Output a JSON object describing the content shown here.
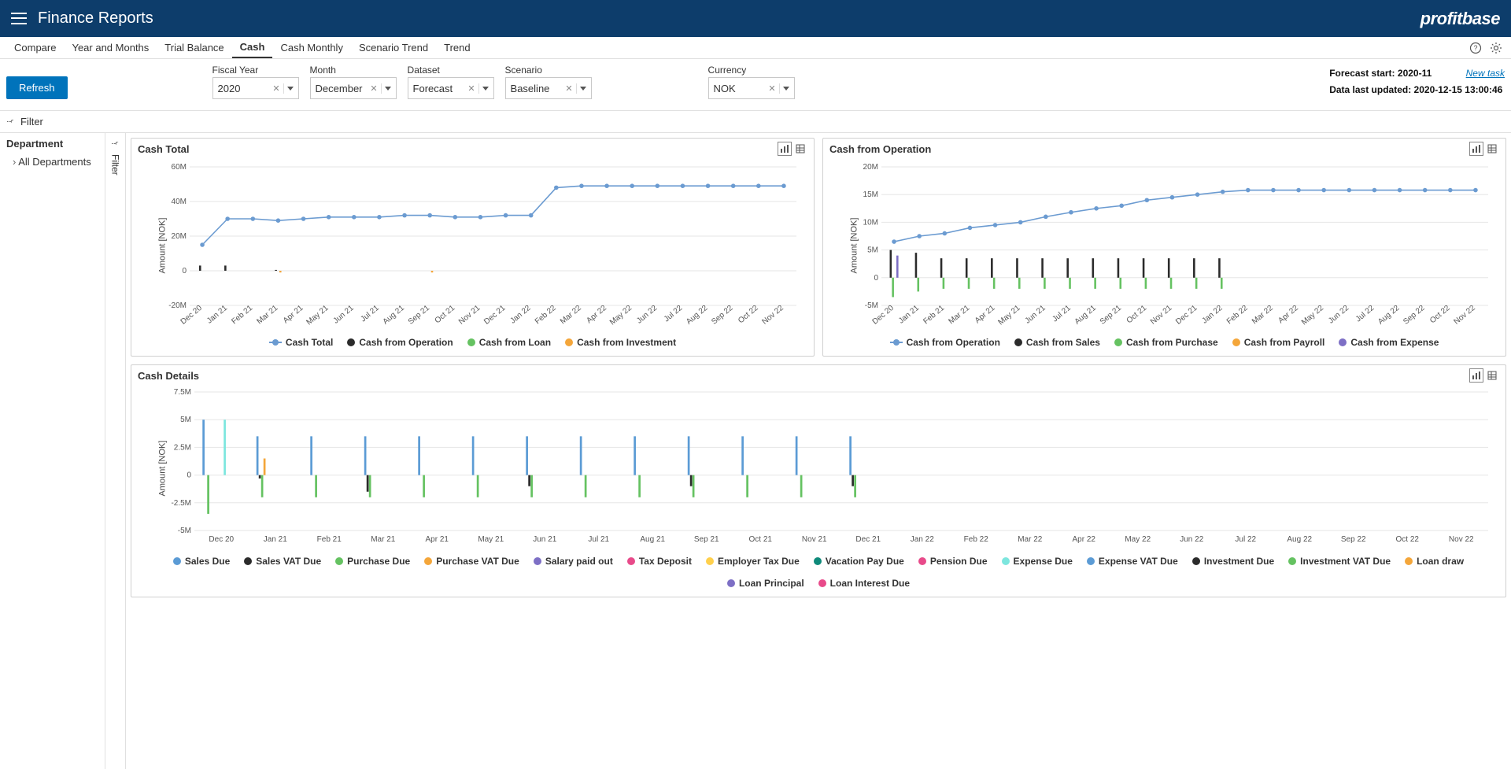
{
  "app": {
    "title": "Finance Reports",
    "brand": "profitbase"
  },
  "tabs": {
    "items": [
      "Compare",
      "Year and Months",
      "Trial Balance",
      "Cash",
      "Cash Monthly",
      "Scenario Trend",
      "Trend"
    ],
    "active_index": 3
  },
  "toolbar": {
    "refresh_label": "Refresh",
    "filters": [
      {
        "label": "Fiscal Year",
        "value": "2020"
      },
      {
        "label": "Month",
        "value": "December"
      },
      {
        "label": "Dataset",
        "value": "Forecast"
      },
      {
        "label": "Scenario",
        "value": "Baseline"
      },
      {
        "label": "Currency",
        "value": "NOK"
      }
    ],
    "meta": {
      "forecast_label": "Forecast start:",
      "forecast_value": "2020-11",
      "updated_label": "Data last updated:",
      "updated_value": "2020-12-15 13:00:46",
      "new_task": "New task"
    }
  },
  "filterstrip_label": "Filter",
  "sidebar": {
    "heading": "Department",
    "root_item": "All Departments"
  },
  "colors": {
    "primary_line": "#6b9bd1",
    "black": "#2b2b2b",
    "green": "#65c261",
    "orange": "#f4a63a",
    "blue": "#5b9bd5",
    "purple": "#7d6fc5",
    "magenta": "#e84a8a",
    "gold": "#ffd04c",
    "teal": "#0e8a7a",
    "cyan": "#7de6de",
    "grid": "#e6e6e6",
    "axis": "#888888"
  },
  "x_axis": {
    "categories": [
      "Dec 20",
      "Jan 21",
      "Feb 21",
      "Mar 21",
      "Apr 21",
      "May 21",
      "Jun 21",
      "Jul 21",
      "Aug 21",
      "Sep 21",
      "Oct 21",
      "Nov 21",
      "Dec 21",
      "Jan 22",
      "Feb 22",
      "Mar 22",
      "Apr 22",
      "May 22",
      "Jun 22",
      "Jul 22",
      "Aug 22",
      "Sep 22",
      "Oct 22",
      "Nov 22"
    ],
    "rotated": true
  },
  "ylabel_text": "Amount [NOK]",
  "chart_total": {
    "title": "Cash Total",
    "type": "combo-line-bar",
    "ylim": [
      -20,
      60
    ],
    "yticks": [
      -20,
      0,
      20,
      40,
      60
    ],
    "ytick_labels": [
      "-20M",
      "0",
      "20M",
      "40M",
      "60M"
    ],
    "line": {
      "name": "Cash Total",
      "color": "#6b9bd1",
      "values": [
        15,
        30,
        30,
        29,
        30,
        31,
        31,
        31,
        32,
        32,
        31,
        31,
        32,
        32,
        48,
        49,
        49,
        49,
        49,
        49,
        49,
        49,
        49,
        49
      ]
    },
    "bars": [
      {
        "name": "Cash from Operation",
        "color": "#2b2b2b",
        "values": [
          3,
          3,
          0,
          0.5,
          0,
          0,
          0,
          0,
          0,
          0,
          0,
          0,
          0,
          0,
          0,
          0,
          0,
          0,
          0,
          0,
          0,
          0,
          0,
          0
        ]
      },
      {
        "name": "Cash from Loan",
        "color": "#65c261",
        "values": [
          0,
          0,
          0,
          0,
          0,
          0,
          0,
          0,
          0,
          0,
          0,
          0,
          0,
          0,
          0,
          0,
          0,
          0,
          0,
          0,
          0,
          0,
          0,
          0
        ]
      },
      {
        "name": "Cash from Investment",
        "color": "#f4a63a",
        "values": [
          0,
          0,
          0,
          -1,
          0,
          0,
          0,
          0,
          0,
          -1,
          0,
          0,
          0,
          0,
          0,
          0,
          0,
          0,
          0,
          0,
          0,
          0,
          0,
          0
        ]
      }
    ],
    "legend": [
      {
        "label": "Cash Total",
        "color": "#6b9bd1",
        "shape": "line"
      },
      {
        "label": "Cash from Operation",
        "color": "#2b2b2b",
        "shape": "dot"
      },
      {
        "label": "Cash from Loan",
        "color": "#65c261",
        "shape": "dot"
      },
      {
        "label": "Cash from Investment",
        "color": "#f4a63a",
        "shape": "dot"
      }
    ]
  },
  "chart_operation": {
    "title": "Cash from Operation",
    "type": "combo-line-bar",
    "ylim": [
      -5,
      20
    ],
    "yticks": [
      -5,
      0,
      5,
      10,
      15,
      20
    ],
    "ytick_labels": [
      "-5M",
      "0",
      "5M",
      "10M",
      "15M",
      "20M"
    ],
    "line": {
      "name": "Cash from Operation",
      "color": "#6b9bd1",
      "values": [
        6.5,
        7.5,
        8,
        9,
        9.5,
        10,
        11,
        11.8,
        12.5,
        13,
        14,
        14.5,
        15,
        15.5,
        15.8,
        15.8,
        15.8,
        15.8,
        15.8,
        15.8,
        15.8,
        15.8,
        15.8,
        15.8
      ]
    },
    "bars": [
      {
        "name": "Cash from Sales",
        "color": "#2b2b2b",
        "values": [
          5,
          4.5,
          3.5,
          3.5,
          3.5,
          3.5,
          3.5,
          3.5,
          3.5,
          3.5,
          3.5,
          3.5,
          3.5,
          3.5,
          0,
          0,
          0,
          0,
          0,
          0,
          0,
          0,
          0,
          0
        ]
      },
      {
        "name": "Cash from Purchase",
        "color": "#65c261",
        "values": [
          -3.5,
          -2.5,
          -2,
          -2,
          -2,
          -2,
          -2,
          -2,
          -2,
          -2,
          -2,
          -2,
          -2,
          -2,
          0,
          0,
          0,
          0,
          0,
          0,
          0,
          0,
          0,
          0
        ]
      },
      {
        "name": "Cash from Payroll",
        "color": "#f4a63a",
        "values": [
          0,
          0,
          0,
          0,
          0,
          0,
          0,
          0,
          0,
          0,
          0,
          0,
          0,
          0,
          0,
          0,
          0,
          0,
          0,
          0,
          0,
          0,
          0,
          0
        ]
      },
      {
        "name": "Cash from Expense",
        "color": "#7d6fc5",
        "values": [
          4,
          0,
          0,
          0,
          0,
          0,
          0,
          0,
          0,
          0,
          0,
          0,
          0,
          0,
          0,
          0,
          0,
          0,
          0,
          0,
          0,
          0,
          0,
          0
        ]
      }
    ],
    "legend": [
      {
        "label": "Cash from Operation",
        "color": "#6b9bd1",
        "shape": "line"
      },
      {
        "label": "Cash from Sales",
        "color": "#2b2b2b",
        "shape": "dot"
      },
      {
        "label": "Cash from Purchase",
        "color": "#65c261",
        "shape": "dot"
      },
      {
        "label": "Cash from Payroll",
        "color": "#f4a63a",
        "shape": "dot"
      },
      {
        "label": "Cash from Expense",
        "color": "#7d6fc5",
        "shape": "dot"
      }
    ]
  },
  "chart_details": {
    "title": "Cash Details",
    "type": "grouped-bar",
    "ylim": [
      -5,
      7.5
    ],
    "yticks": [
      -5,
      -2.5,
      0,
      2.5,
      5,
      7.5
    ],
    "ytick_labels": [
      "-5M",
      "-2.5M",
      "0",
      "2.5M",
      "5M",
      "7.5M"
    ],
    "bars": [
      {
        "name": "Sales Due",
        "color": "#5b9bd5",
        "values": [
          5,
          3.5,
          3.5,
          3.5,
          3.5,
          3.5,
          3.5,
          3.5,
          3.5,
          3.5,
          3.5,
          3.5,
          3.5,
          0,
          0,
          0,
          0,
          0,
          0,
          0,
          0,
          0,
          0,
          0
        ]
      },
      {
        "name": "Sales VAT Due",
        "color": "#2b2b2b",
        "values": [
          0,
          -0.3,
          0,
          -1.5,
          0,
          0,
          -1,
          0,
          0,
          -1,
          0,
          0,
          -1,
          0,
          0,
          0,
          0,
          0,
          0,
          0,
          0,
          0,
          0,
          0
        ]
      },
      {
        "name": "Purchase Due",
        "color": "#65c261",
        "values": [
          -3.5,
          -2,
          -2,
          -2,
          -2,
          -2,
          -2,
          -2,
          -2,
          -2,
          -2,
          -2,
          -2,
          0,
          0,
          0,
          0,
          0,
          0,
          0,
          0,
          0,
          0,
          0
        ]
      },
      {
        "name": "Purchase VAT Due",
        "color": "#f4a63a",
        "values": [
          0,
          1.5,
          0,
          0,
          0,
          0,
          0,
          0,
          0,
          0,
          0,
          0,
          0,
          0,
          0,
          0,
          0,
          0,
          0,
          0,
          0,
          0,
          0,
          0
        ]
      },
      {
        "name": "Salary paid out",
        "color": "#7d6fc5",
        "values": [
          0,
          0,
          0,
          0,
          0,
          0,
          0,
          0,
          0,
          0,
          0,
          0,
          0,
          0,
          0,
          0,
          0,
          0,
          0,
          0,
          0,
          0,
          0,
          0
        ]
      },
      {
        "name": "Tax Deposit",
        "color": "#e84a8a",
        "values": [
          0,
          0,
          0,
          0,
          0,
          0,
          0,
          0,
          0,
          0,
          0,
          0,
          0,
          0,
          0,
          0,
          0,
          0,
          0,
          0,
          0,
          0,
          0,
          0
        ]
      },
      {
        "name": "Employer Tax Due",
        "color": "#ffd04c",
        "values": [
          0,
          0,
          0,
          0,
          0,
          0,
          0,
          0,
          0,
          0,
          0,
          0,
          0,
          0,
          0,
          0,
          0,
          0,
          0,
          0,
          0,
          0,
          0,
          0
        ]
      },
      {
        "name": "Vacation Pay Due",
        "color": "#0e8a7a",
        "values": [
          0,
          0,
          0,
          0,
          0,
          0,
          0,
          0,
          0,
          0,
          0,
          0,
          0,
          0,
          0,
          0,
          0,
          0,
          0,
          0,
          0,
          0,
          0,
          0
        ]
      },
      {
        "name": "Pension Due",
        "color": "#e84a8a",
        "values": [
          0,
          0,
          0,
          0,
          0,
          0,
          0,
          0,
          0,
          0,
          0,
          0,
          0,
          0,
          0,
          0,
          0,
          0,
          0,
          0,
          0,
          0,
          0,
          0
        ]
      },
      {
        "name": "Expense Due",
        "color": "#7de6de",
        "values": [
          5,
          0,
          0,
          0,
          0,
          0,
          0,
          0,
          0,
          0,
          0,
          0,
          0,
          0,
          0,
          0,
          0,
          0,
          0,
          0,
          0,
          0,
          0,
          0
        ]
      },
      {
        "name": "Expense VAT Due",
        "color": "#5b9bd5",
        "values": [
          0,
          0,
          0,
          0,
          0,
          0,
          0,
          0,
          0,
          0,
          0,
          0,
          0,
          0,
          0,
          0,
          0,
          0,
          0,
          0,
          0,
          0,
          0,
          0
        ]
      },
      {
        "name": "Investment Due",
        "color": "#2b2b2b",
        "values": [
          0,
          0,
          0,
          0,
          0,
          0,
          0,
          0,
          0,
          0,
          0,
          0,
          0,
          0,
          0,
          0,
          0,
          0,
          0,
          0,
          0,
          0,
          0,
          0
        ]
      },
      {
        "name": "Investment VAT Due",
        "color": "#65c261",
        "values": [
          0,
          0,
          0,
          0,
          0,
          0,
          0,
          0,
          0,
          0,
          0,
          0,
          0,
          0,
          0,
          0,
          0,
          0,
          0,
          0,
          0,
          0,
          0,
          0
        ]
      },
      {
        "name": "Loan draw",
        "color": "#f4a63a",
        "values": [
          0,
          0,
          0,
          0,
          0,
          0,
          0,
          0,
          0,
          0,
          0,
          0,
          0,
          0,
          0,
          0,
          0,
          0,
          0,
          0,
          0,
          0,
          0,
          0
        ]
      },
      {
        "name": "Loan Principal",
        "color": "#7d6fc5",
        "values": [
          0,
          0,
          0,
          0,
          0,
          0,
          0,
          0,
          0,
          0,
          0,
          0,
          0,
          0,
          0,
          0,
          0,
          0,
          0,
          0,
          0,
          0,
          0,
          0
        ]
      },
      {
        "name": "Loan Interest Due",
        "color": "#e84a8a",
        "values": [
          0,
          0,
          0,
          0,
          0,
          0,
          0,
          0,
          0,
          0,
          0,
          0,
          0,
          0,
          0,
          0,
          0,
          0,
          0,
          0,
          0,
          0,
          0,
          0
        ]
      }
    ],
    "legend": [
      {
        "label": "Sales Due",
        "color": "#5b9bd5"
      },
      {
        "label": "Sales VAT Due",
        "color": "#2b2b2b"
      },
      {
        "label": "Purchase Due",
        "color": "#65c261"
      },
      {
        "label": "Purchase VAT Due",
        "color": "#f4a63a"
      },
      {
        "label": "Salary paid out",
        "color": "#7d6fc5"
      },
      {
        "label": "Tax Deposit",
        "color": "#e84a8a"
      },
      {
        "label": "Employer Tax Due",
        "color": "#ffd04c"
      },
      {
        "label": "Vacation Pay Due",
        "color": "#0e8a7a"
      },
      {
        "label": "Pension Due",
        "color": "#e84a8a"
      },
      {
        "label": "Expense Due",
        "color": "#7de6de"
      },
      {
        "label": "Expense VAT Due",
        "color": "#5b9bd5"
      },
      {
        "label": "Investment Due",
        "color": "#2b2b2b"
      },
      {
        "label": "Investment VAT Due",
        "color": "#65c261"
      },
      {
        "label": "Loan draw",
        "color": "#f4a63a"
      },
      {
        "label": "Loan Principal",
        "color": "#7d6fc5"
      },
      {
        "label": "Loan Interest Due",
        "color": "#e84a8a"
      }
    ]
  }
}
